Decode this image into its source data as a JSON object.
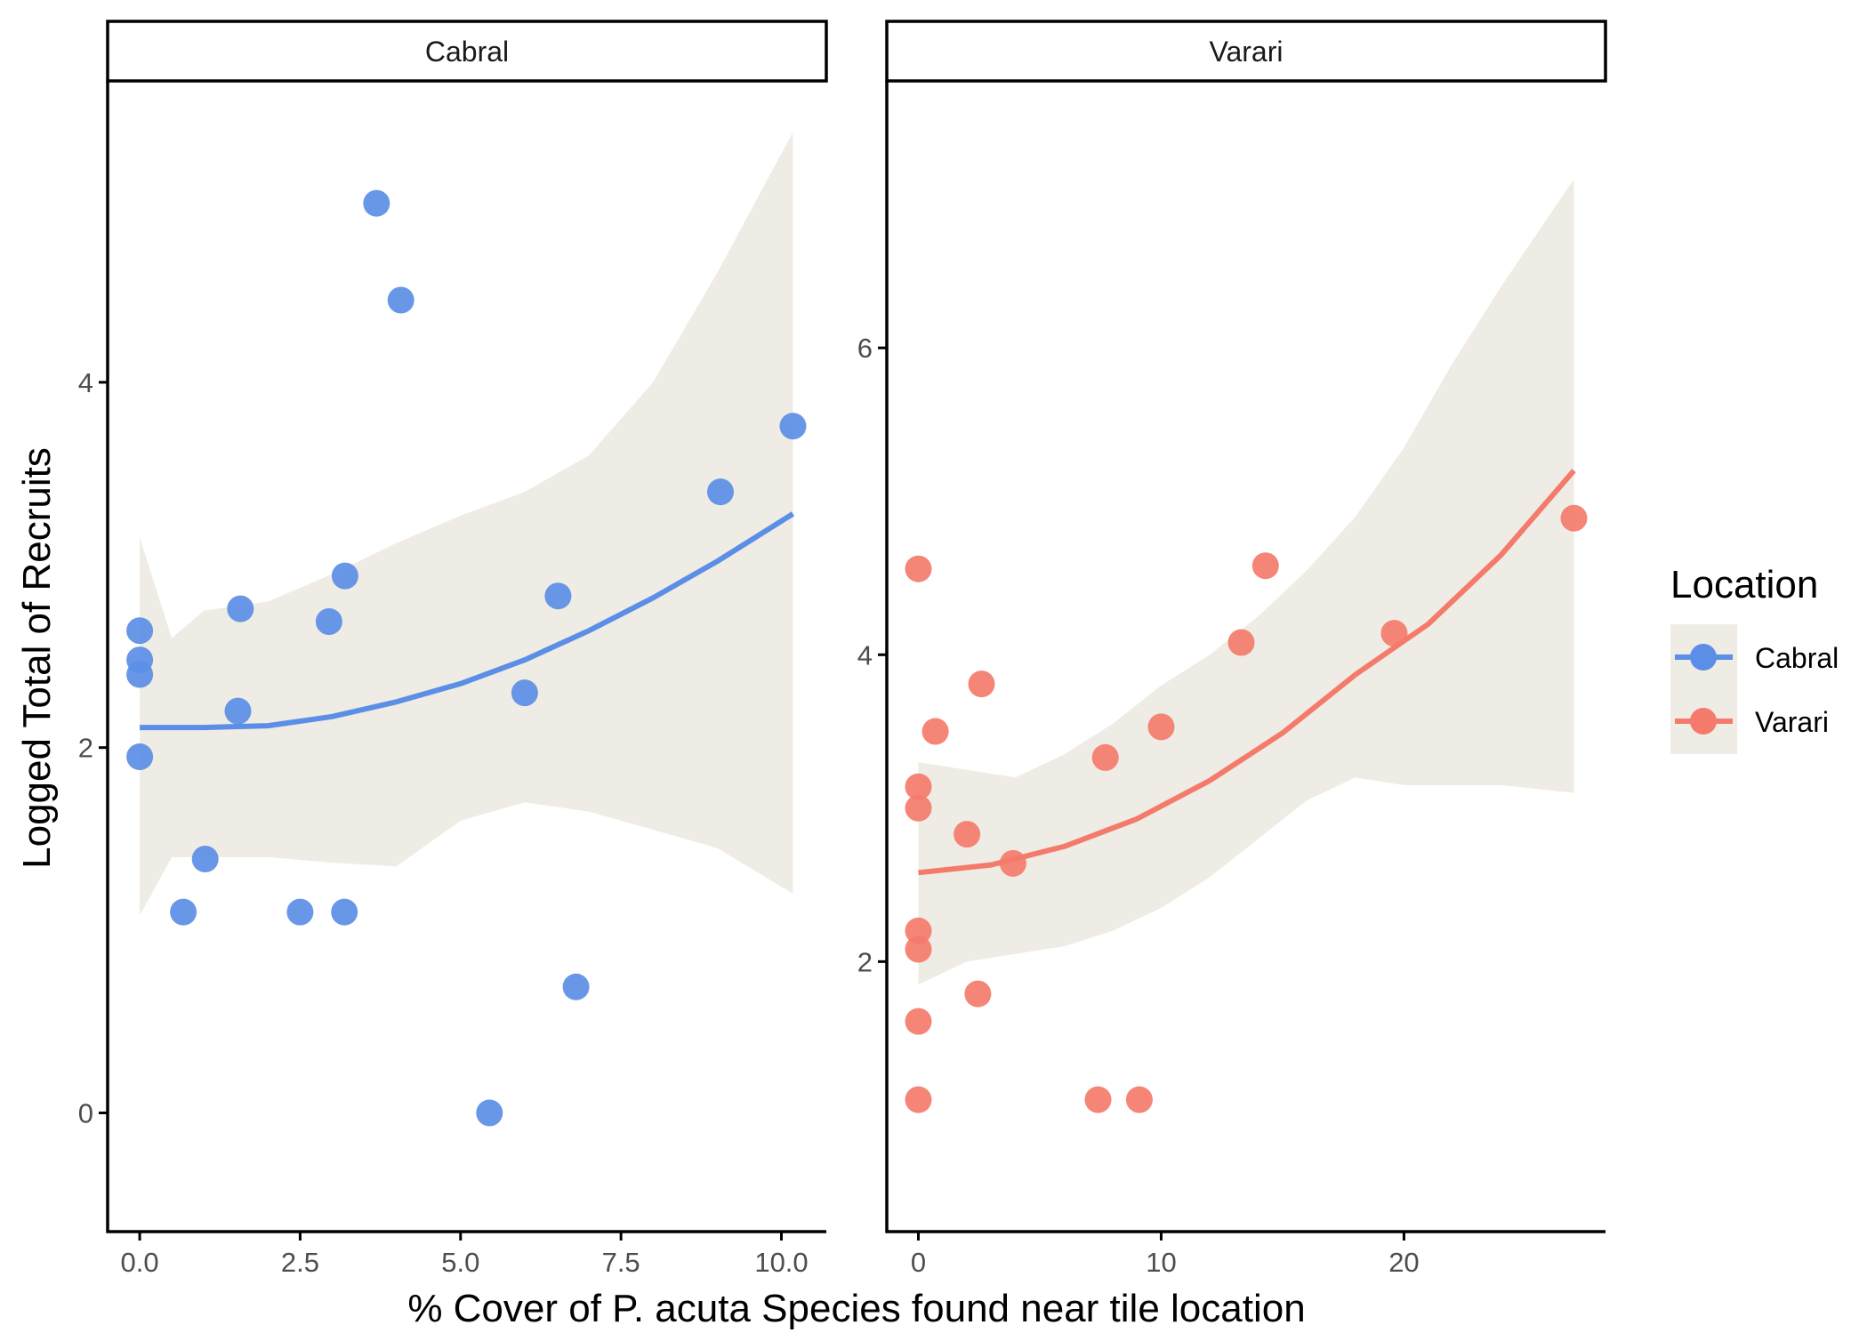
{
  "colors": {
    "Cabral": "#5b8ee6",
    "Varari": "#f47b6b",
    "ribbon": "#eeece4",
    "axis": "#000000",
    "tick_label": "#4d4d4d"
  },
  "axis_titles": {
    "x": "% Cover of P. acuta Species found near tile location",
    "y": "Logged Total of Recruits"
  },
  "legend": {
    "title": "Location",
    "items": [
      {
        "label": "Cabral",
        "color": "#5b8ee6"
      },
      {
        "label": "Varari",
        "color": "#f47b6b"
      }
    ]
  },
  "chart_data": [
    {
      "type": "scatter",
      "panel": "Cabral",
      "strip_label": "Cabral",
      "xlabel": "% Cover of P. acuta Species found near tile location",
      "ylabel": "Logged Total of Recruits",
      "xlim": [
        -0.5,
        10.7
      ],
      "ylim": [
        -0.65,
        5.65
      ],
      "x_ticks": [
        0,
        2.5,
        5,
        7.5,
        10
      ],
      "x_tick_labels": [
        "0.0",
        "2.5",
        "5.0",
        "7.5",
        "10.0"
      ],
      "y_ticks": [
        0,
        2,
        4
      ],
      "y_tick_labels": [
        "0",
        "2",
        "4"
      ],
      "grid": false,
      "legend_position": "right",
      "points": [
        {
          "x": 0.0,
          "y": 2.64
        },
        {
          "x": 0.0,
          "y": 2.48
        },
        {
          "x": 0.0,
          "y": 2.4
        },
        {
          "x": 0.0,
          "y": 1.95
        },
        {
          "x": 0.68,
          "y": 1.1
        },
        {
          "x": 1.02,
          "y": 1.39
        },
        {
          "x": 1.53,
          "y": 2.2
        },
        {
          "x": 1.57,
          "y": 2.76
        },
        {
          "x": 2.5,
          "y": 1.1
        },
        {
          "x": 2.95,
          "y": 2.69
        },
        {
          "x": 3.19,
          "y": 1.1
        },
        {
          "x": 3.2,
          "y": 2.94
        },
        {
          "x": 3.69,
          "y": 4.98
        },
        {
          "x": 4.07,
          "y": 4.45
        },
        {
          "x": 5.45,
          "y": 0.0
        },
        {
          "x": 6.0,
          "y": 2.3
        },
        {
          "x": 6.52,
          "y": 2.83
        },
        {
          "x": 6.8,
          "y": 0.69
        },
        {
          "x": 9.05,
          "y": 3.4
        },
        {
          "x": 10.18,
          "y": 3.76
        }
      ],
      "fit": {
        "x": [
          0,
          1,
          2,
          3,
          4,
          5,
          6,
          7,
          8,
          9,
          10.18
        ],
        "y": [
          2.11,
          2.11,
          2.12,
          2.17,
          2.25,
          2.35,
          2.48,
          2.64,
          2.82,
          3.02,
          3.28
        ]
      },
      "ribbon": {
        "x": [
          0,
          0.5,
          1,
          2,
          3,
          4,
          5,
          6,
          7,
          8,
          9,
          10.18
        ],
        "upper": [
          3.15,
          2.6,
          2.75,
          2.8,
          2.95,
          3.12,
          3.27,
          3.4,
          3.6,
          4.0,
          4.6,
          5.37
        ],
        "lower": [
          1.08,
          1.4,
          1.4,
          1.4,
          1.37,
          1.35,
          1.6,
          1.7,
          1.65,
          1.55,
          1.45,
          1.2
        ]
      }
    },
    {
      "type": "scatter",
      "panel": "Varari",
      "strip_label": "Varari",
      "xlabel": "% Cover of P. acuta Species found near tile location",
      "ylabel": "Logged Total of Recruits",
      "xlim": [
        -1.3,
        28.3
      ],
      "ylim": [
        0.24,
        7.74
      ],
      "x_ticks": [
        0,
        10,
        20
      ],
      "x_tick_labels": [
        "0",
        "10",
        "20"
      ],
      "y_ticks": [
        2,
        4,
        6
      ],
      "y_tick_labels": [
        "2",
        "4",
        "6"
      ],
      "grid": false,
      "legend_position": "right",
      "points": [
        {
          "x": 0.0,
          "y": 4.56
        },
        {
          "x": 0.0,
          "y": 3.14
        },
        {
          "x": 0.0,
          "y": 3.0
        },
        {
          "x": 0.0,
          "y": 2.2
        },
        {
          "x": 0.0,
          "y": 2.08
        },
        {
          "x": 0.0,
          "y": 1.61
        },
        {
          "x": 0.0,
          "y": 1.1
        },
        {
          "x": 0.7,
          "y": 3.5
        },
        {
          "x": 2.0,
          "y": 2.83
        },
        {
          "x": 2.45,
          "y": 1.79
        },
        {
          "x": 2.6,
          "y": 3.81
        },
        {
          "x": 3.9,
          "y": 2.64
        },
        {
          "x": 7.4,
          "y": 1.1
        },
        {
          "x": 7.7,
          "y": 3.33
        },
        {
          "x": 9.1,
          "y": 1.1
        },
        {
          "x": 10.0,
          "y": 3.53
        },
        {
          "x": 13.3,
          "y": 4.08
        },
        {
          "x": 14.3,
          "y": 4.58
        },
        {
          "x": 19.6,
          "y": 4.14
        },
        {
          "x": 27.0,
          "y": 4.89
        }
      ],
      "fit": {
        "x": [
          0,
          3,
          6,
          9,
          12,
          15,
          18,
          21,
          24,
          27
        ],
        "y": [
          2.58,
          2.63,
          2.75,
          2.93,
          3.18,
          3.49,
          3.87,
          4.2,
          4.65,
          5.2
        ]
      },
      "ribbon": {
        "x": [
          0,
          2,
          4,
          6,
          8,
          10,
          12,
          14,
          16,
          18,
          20,
          22,
          24,
          27
        ],
        "upper": [
          3.3,
          3.25,
          3.2,
          3.35,
          3.55,
          3.8,
          4.0,
          4.25,
          4.55,
          4.9,
          5.35,
          5.9,
          6.4,
          7.1
        ],
        "lower": [
          1.85,
          2.0,
          2.05,
          2.1,
          2.2,
          2.35,
          2.55,
          2.8,
          3.05,
          3.2,
          3.15,
          3.15,
          3.15,
          3.1
        ]
      }
    }
  ]
}
